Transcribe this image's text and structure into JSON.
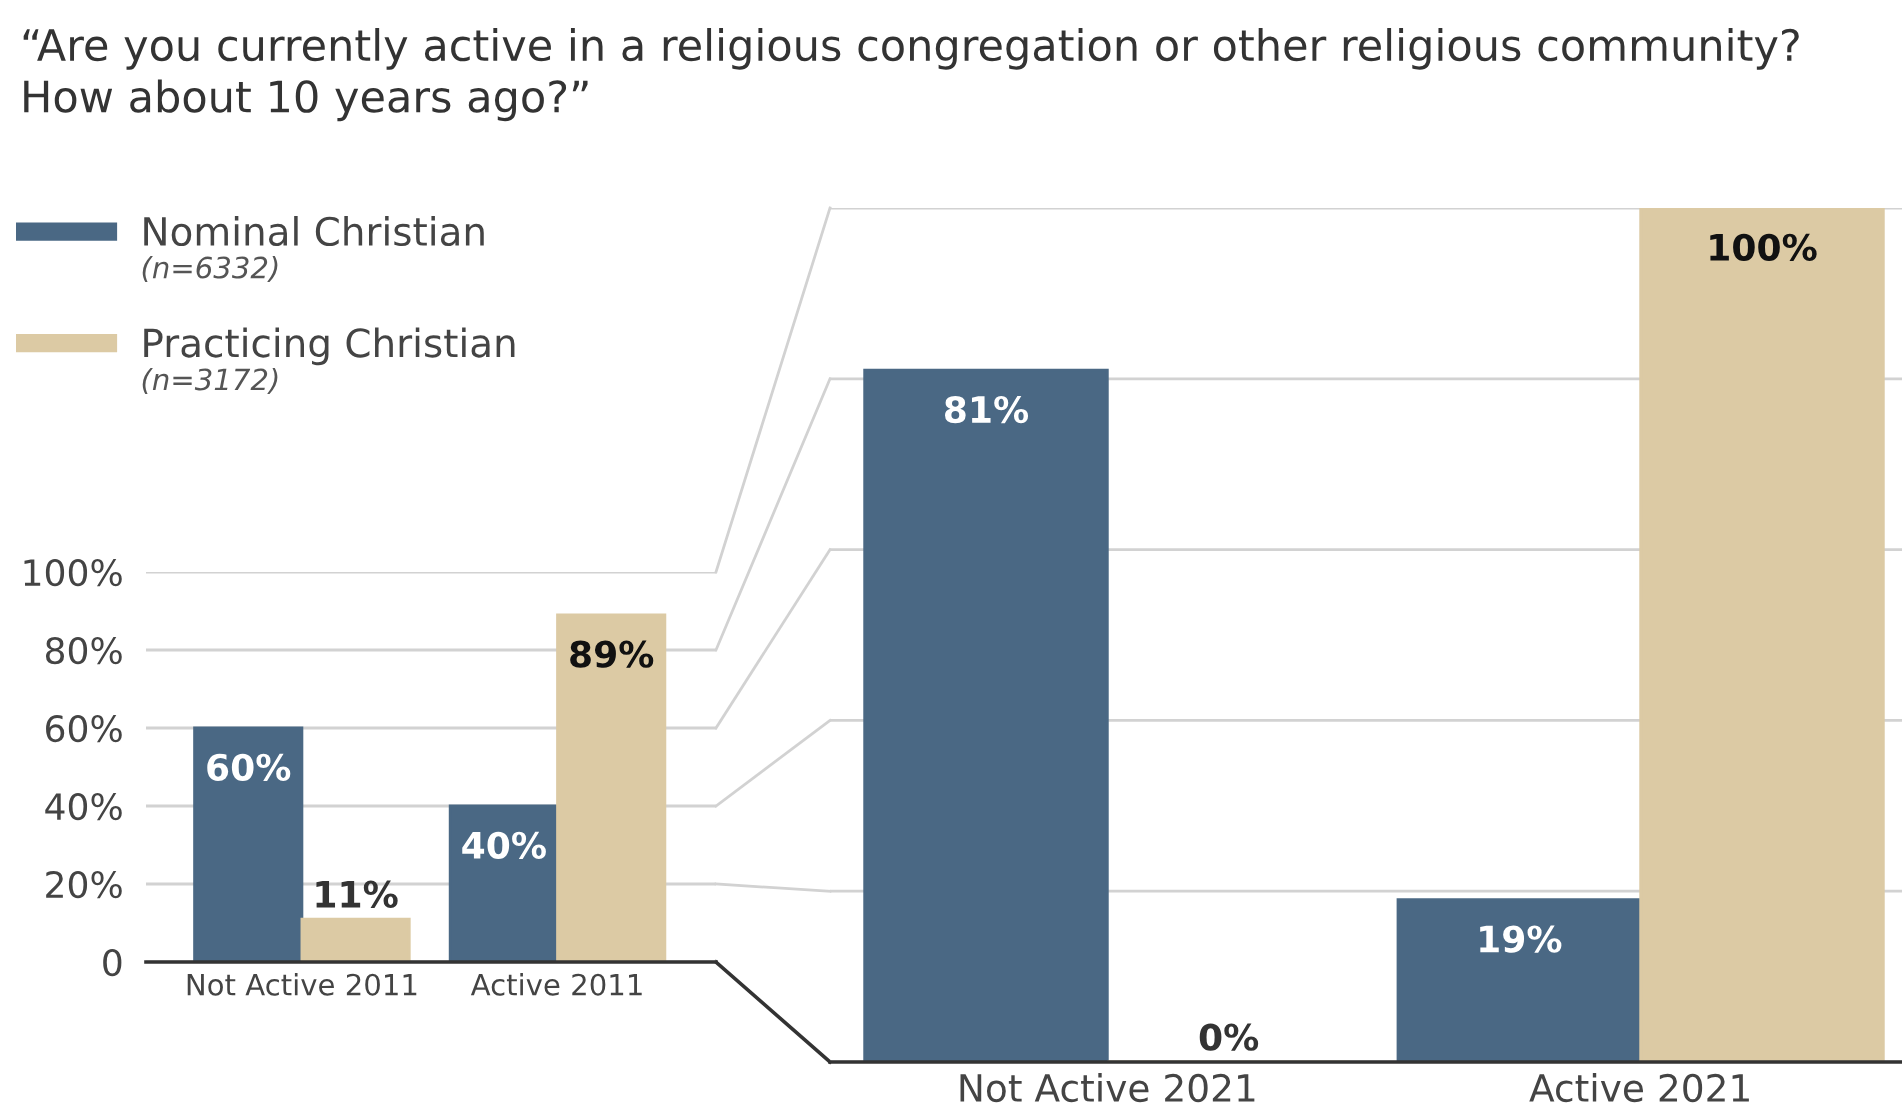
{
  "chart_data": [
    {
      "type": "bar",
      "title": "“Are you currently active in a religious congregation or other religious community?\nHow about 10 years ago?”",
      "categories": [
        "Not Active 2011",
        "Active 2011"
      ],
      "series": [
        {
          "name": "Nominal Christian",
          "color": "#4a6884",
          "values": [
            60,
            40
          ],
          "value_labels": [
            "60%",
            "40%"
          ]
        },
        {
          "name": "Practicing Christian",
          "color": "#dccaa4",
          "values": [
            11,
            89
          ],
          "value_labels": [
            "11%",
            "89%"
          ]
        }
      ],
      "ylim": [
        0,
        100
      ],
      "yticks": [
        0,
        {
          "value": 20,
          "label": "20%"
        },
        {
          "value": 40,
          "label": "40%"
        },
        {
          "value": 60,
          "label": "60%"
        },
        {
          "value": 80,
          "label": "80%"
        },
        {
          "value": 100,
          "label": "100%"
        }
      ],
      "grid": "y",
      "legend": "top left",
      "annotations": [
        "(n=6332)",
        "(n=3172)"
      ]
    },
    {
      "type": "bar",
      "categories": [
        "Not Active 2021",
        "Active 2021"
      ],
      "series": [
        {
          "color": "#4a6884",
          "values": [
            81,
            19
          ],
          "value_labels": [
            "81%",
            "19%"
          ]
        },
        {
          "color": "#dccaa4",
          "values": [
            0,
            100
          ],
          "value_labels": [
            "0%",
            "100%"
          ]
        }
      ],
      "ylim": [
        0,
        100
      ],
      "yticks": [
        {
          "value": 0,
          "label": null
        },
        {
          "value": 20,
          "label": null
        },
        {
          "value": 40,
          "label": null
        },
        {
          "value": 60,
          "label": null
        },
        {
          "value": 80,
          "label": null
        },
        {
          "value": 100,
          "label": null
        }
      ],
      "grid": "y"
    }
  ]
}
